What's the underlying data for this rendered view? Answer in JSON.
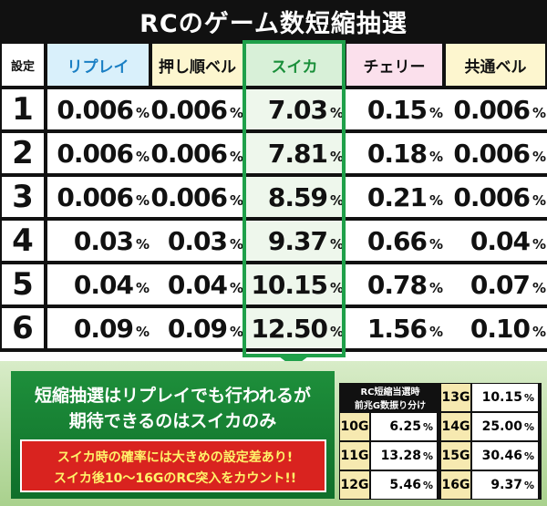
{
  "title": "RCのゲーム数短縮抽選",
  "table": {
    "header": [
      "設定",
      "リプレイ",
      "押し順ベル",
      "スイカ",
      "チェリー",
      "共通ベル"
    ],
    "unit": "%",
    "rows": [
      [
        "1",
        "0.006",
        "0.006",
        "7.03",
        "0.15",
        "0.006"
      ],
      [
        "2",
        "0.006",
        "0.006",
        "7.81",
        "0.18",
        "0.006"
      ],
      [
        "3",
        "0.006",
        "0.006",
        "8.59",
        "0.21",
        "0.006"
      ],
      [
        "4",
        "0.03",
        "0.03",
        "9.37",
        "0.66",
        "0.04"
      ],
      [
        "5",
        "0.04",
        "0.04",
        "10.15",
        "0.78",
        "0.07"
      ],
      [
        "6",
        "0.09",
        "0.09",
        "12.50",
        "1.56",
        "0.10"
      ]
    ]
  },
  "message": [
    "短縮抽選はリプレイでも行われるが",
    "期待できるのはスイカのみ"
  ],
  "notes": [
    "スイカ時の確率には大きめの設定差あり!",
    "スイカ後10～16GのRC突入をカウント!!"
  ],
  "shortcut": {
    "header": [
      "RC短縮当選時",
      "前兆G数振り分け"
    ],
    "rows": [
      [
        "10G",
        "6.25"
      ],
      [
        "11G",
        "13.28"
      ],
      [
        "12G",
        "5.46"
      ],
      [
        "13G",
        "10.15"
      ],
      [
        "14G",
        "25.00"
      ],
      [
        "15G",
        "30.46"
      ],
      [
        "16G",
        "9.37"
      ]
    ]
  }
}
